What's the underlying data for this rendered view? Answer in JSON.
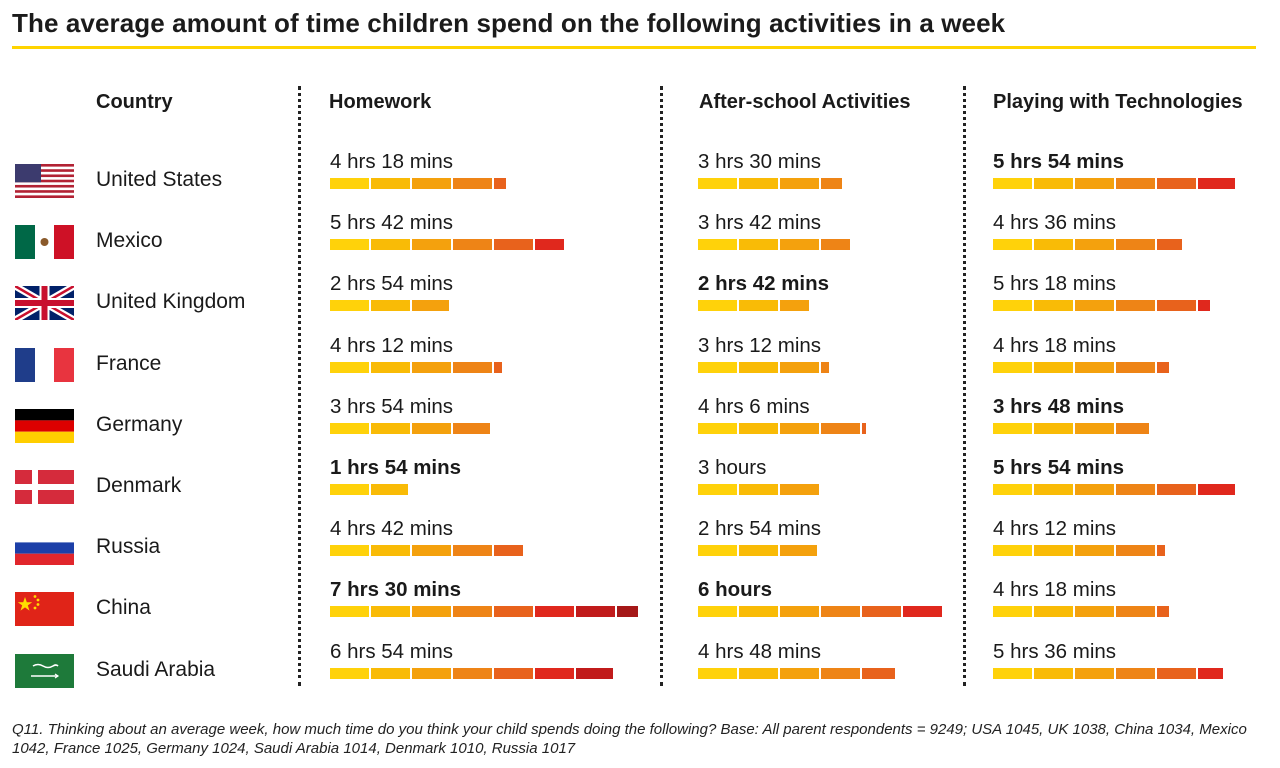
{
  "title": "The average amount of time children spend on the following activities in a week",
  "headers": {
    "country": "Country",
    "homework": "Homework",
    "after_school": "After-school Activities",
    "technology": "Playing with Technologies"
  },
  "footnote": "Q11. Thinking about an average week, how much time do you think your child spends doing the following? Base: All parent respondents = 9249; USA 1045, UK 1038, China 1034, Mexico 1042, France 1025, Germany 1024, Saudi Arabia 1014, Denmark 1010, Russia 1017",
  "segment_colors": [
    "#ffd20a",
    "#f9bb06",
    "#f4a10d",
    "#ee8416",
    "#e8621c",
    "#e0281d",
    "#c11b1b",
    "#a51818"
  ],
  "chart_data": {
    "type": "bar",
    "unit": "hours",
    "categories": [
      "United States",
      "Mexico",
      "United Kingdom",
      "France",
      "Germany",
      "Denmark",
      "Russia",
      "China",
      "Saudi Arabia"
    ],
    "series": [
      {
        "name": "Homework",
        "values": [
          4.3,
          5.7,
          2.9,
          4.2,
          3.9,
          1.9,
          4.7,
          7.5,
          6.9
        ],
        "labels": [
          "4 hrs 18 mins",
          "5 hrs 42 mins",
          "2 hrs 54 mins",
          "4 hrs 12 mins",
          "3 hrs 54 mins",
          "1 hrs 54 mins",
          "4 hrs 42 mins",
          "7 hrs 30 mins",
          "6 hrs 54 mins"
        ],
        "highlight": [
          false,
          false,
          false,
          false,
          false,
          true,
          false,
          true,
          false
        ]
      },
      {
        "name": "After-school Activities",
        "values": [
          3.5,
          3.7,
          2.7,
          3.2,
          4.1,
          3.0,
          2.9,
          6.0,
          4.8
        ],
        "labels": [
          "3 hrs 30 mins",
          "3 hrs 42 mins",
          "2 hrs 42 mins",
          "3 hrs 12 mins",
          "4 hrs 6 mins",
          "3 hours",
          "2 hrs 54 mins",
          "6 hours",
          "4 hrs 48 mins"
        ],
        "highlight": [
          false,
          false,
          true,
          false,
          false,
          false,
          false,
          true,
          false
        ]
      },
      {
        "name": "Playing with Technologies",
        "values": [
          5.9,
          4.6,
          5.3,
          4.3,
          3.8,
          5.9,
          4.2,
          4.3,
          5.6
        ],
        "labels": [
          "5 hrs 54 mins",
          "4 hrs 36 mins",
          "5 hrs 18 mins",
          "4 hrs 18 mins",
          "3 hrs 48 mins",
          "5 hrs 54 mins",
          "4 hrs 12 mins",
          "4 hrs 18 mins",
          "5 hrs 36 mins"
        ],
        "highlight": [
          true,
          false,
          false,
          false,
          true,
          true,
          false,
          false,
          false
        ]
      }
    ]
  }
}
